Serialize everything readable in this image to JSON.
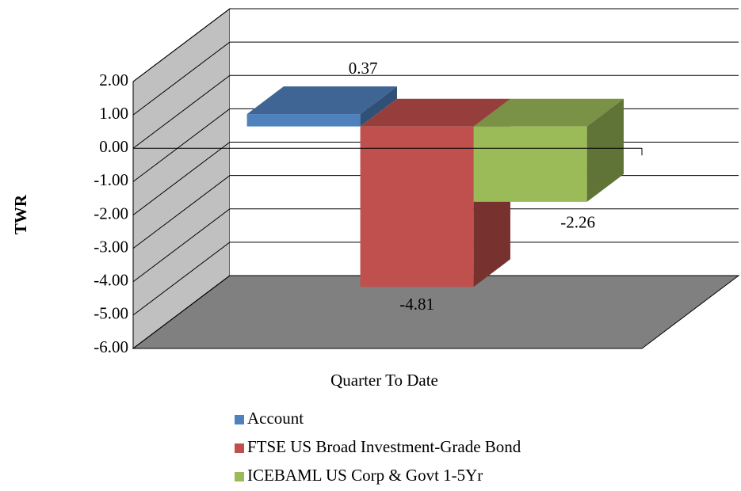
{
  "chart_data": {
    "type": "bar3d",
    "y_label": "TWR",
    "categories": [
      "Quarter To Date"
    ],
    "series": [
      {
        "name": "Account",
        "color": "#4f81bd",
        "values": [
          0.37
        ]
      },
      {
        "name": "FTSE US Broad Investment-Grade Bond",
        "color": "#c0504d",
        "values": [
          -4.81
        ]
      },
      {
        "name": "ICEBAML US Corp & Govt 1-5Yr",
        "color": "#9bbb59",
        "values": [
          -2.26
        ]
      }
    ],
    "ylim": [
      -6,
      2
    ],
    "yticks": [
      {
        "value": 2,
        "label": "2.00"
      },
      {
        "value": 1,
        "label": "1.00"
      },
      {
        "value": 0,
        "label": "0.00"
      },
      {
        "value": -1,
        "label": "-1.00"
      },
      {
        "value": -2,
        "label": "-2.00"
      },
      {
        "value": -3,
        "label": "-3.00"
      },
      {
        "value": -4,
        "label": "-4.00"
      },
      {
        "value": -5,
        "label": "-5.00"
      },
      {
        "value": -6,
        "label": "-6.00"
      }
    ],
    "grid": true,
    "legend": "bottom"
  }
}
